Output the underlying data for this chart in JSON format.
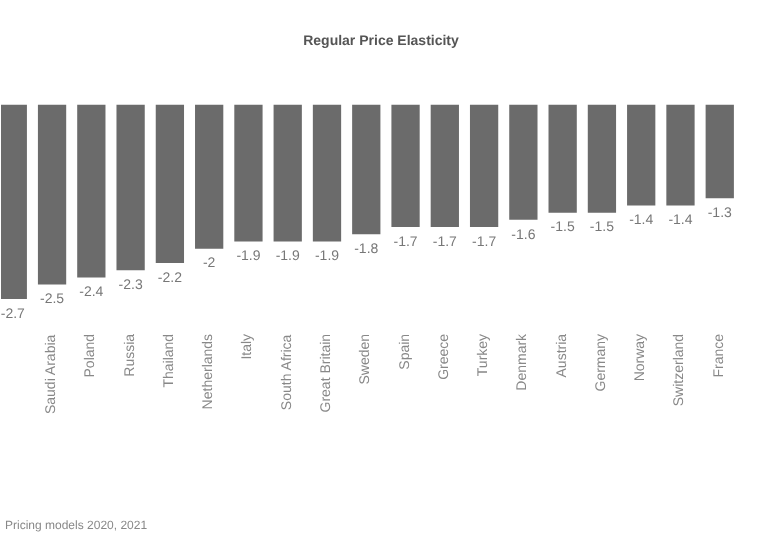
{
  "chart_data": {
    "type": "bar",
    "title": "Regular Price Elasticity",
    "categories": [
      null,
      "Saudi Arabia",
      "Poland",
      "Russia",
      "Thailand",
      "Netherlands",
      "Italy",
      "South Africa",
      "Great Britain",
      "Sweden",
      "Spain",
      "Greece",
      "Turkey",
      "Denmark",
      "Austria",
      "Germany",
      "Norway",
      "Switzerland",
      "France"
    ],
    "values": [
      -2.7,
      -2.5,
      -2.4,
      -2.3,
      -2.2,
      -2.0,
      -1.9,
      -1.9,
      -1.9,
      -1.8,
      -1.7,
      -1.7,
      -1.7,
      -1.6,
      -1.5,
      -1.5,
      -1.4,
      -1.4,
      -1.3
    ],
    "color": "#6b6b6b",
    "data_labels": true,
    "grid": false,
    "annotations": [
      "Pricing models 2020, 2021"
    ]
  }
}
